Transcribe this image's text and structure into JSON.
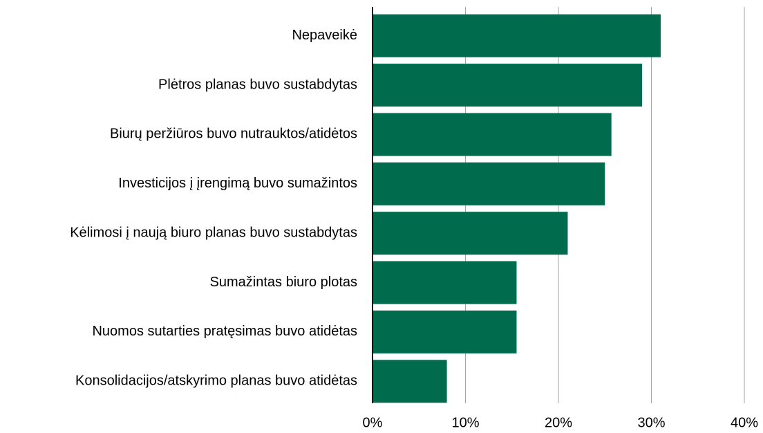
{
  "chart_data": {
    "type": "hbar",
    "categories": [
      "Nepaveikė",
      "Plėtros planas buvo sustabdytas",
      "Biurų peržiūros buvo nutrauktos/atidėtos",
      "Investicijos į įrengimą buvo sumažintos",
      "Kėlimosi į naują biuro planas buvo sustabdytas",
      "Sumažintas biuro plotas",
      "Nuomos sutarties pratęsimas buvo atidėtas",
      "Konsolidacijos/atskyrimo planas buvo atidėtas"
    ],
    "values": [
      31,
      29,
      25.7,
      25,
      21,
      15.5,
      15.5,
      8
    ],
    "color": "#006b4d",
    "xlim": [
      0,
      40
    ],
    "xticks": [
      {
        "value": 0,
        "label": "0%"
      },
      {
        "value": 10,
        "label": "10%"
      },
      {
        "value": 20,
        "label": "20%"
      },
      {
        "value": 30,
        "label": "30%"
      },
      {
        "value": 40,
        "label": "40%"
      }
    ],
    "grid": true
  }
}
